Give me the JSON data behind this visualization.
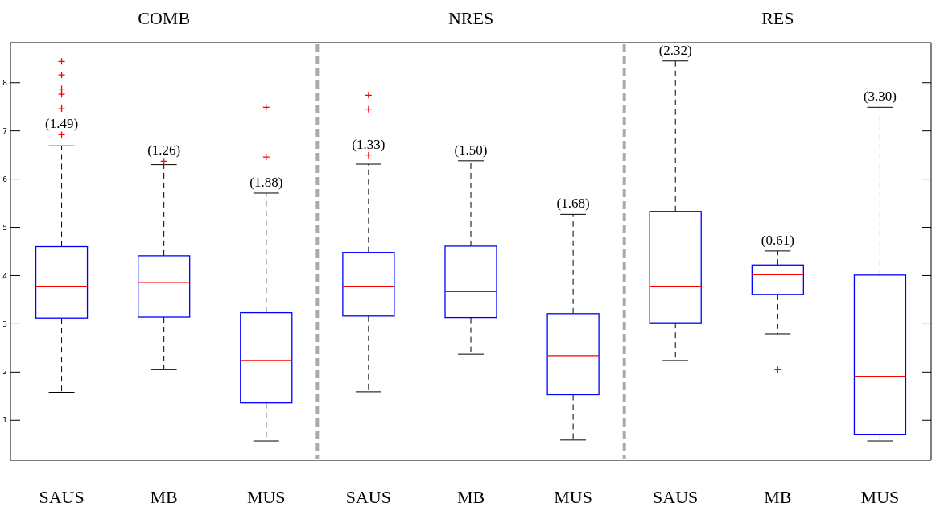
{
  "chart_data": [
    {
      "type": "box",
      "title": "COMB",
      "categories": [
        "SAUS",
        "MB",
        "MUS"
      ],
      "ylim": [
        0.17,
        8.83
      ],
      "yticks": [
        1,
        2,
        3,
        4,
        5,
        6,
        7,
        8
      ],
      "marker": "cross",
      "series": [
        {
          "color": "#0000ff",
          "boxes": [
            {
              "low": 1.58,
              "q1": 3.12,
              "median": 3.77,
              "q3": 4.6,
              "high": 6.69,
              "outliers": [
                8.44,
                8.16,
                7.87,
                7.76,
                7.46,
                6.92
              ]
            },
            {
              "low": 2.05,
              "q1": 3.14,
              "median": 3.86,
              "q3": 4.41,
              "high": 6.3,
              "outliers": [
                6.37
              ]
            },
            {
              "low": 0.57,
              "q1": 1.36,
              "median": 2.24,
              "q3": 3.23,
              "high": 5.71,
              "outliers": [
                7.49,
                6.46
              ]
            }
          ]
        }
      ],
      "annotations": [
        {
          "text": "(1.49)",
          "x": "SAUS",
          "y": 6.69
        },
        {
          "text": "(1.26)",
          "x": "MB",
          "y": 6.3
        },
        {
          "text": "(1.88)",
          "x": "MUS",
          "y": 5.71
        }
      ]
    },
    {
      "type": "box",
      "title": "NRES",
      "categories": [
        "SAUS",
        "MB",
        "MUS"
      ],
      "ylim": [
        0.17,
        8.83
      ],
      "yticks": [
        1,
        2,
        3,
        4,
        5,
        6,
        7,
        8
      ],
      "tick_labels": "x",
      "marker": "cross",
      "series": [
        {
          "color": "#0000ff",
          "boxes": [
            {
              "low": 1.59,
              "q1": 3.16,
              "median": 3.77,
              "q3": 4.48,
              "high": 6.31,
              "outliers": [
                7.74,
                7.45,
                6.5
              ]
            },
            {
              "low": 2.37,
              "q1": 3.13,
              "median": 3.67,
              "q3": 4.61,
              "high": 6.38
            },
            {
              "low": 0.59,
              "q1": 1.53,
              "median": 2.34,
              "q3": 3.21,
              "high": 5.27
            }
          ]
        }
      ],
      "annotations": [
        {
          "text": "(1.33)",
          "x": "SAUS",
          "y": 6.31
        },
        {
          "text": "(1.50)",
          "x": "MB",
          "y": 6.38
        },
        {
          "text": "(1.68)",
          "x": "MUS",
          "y": 5.27
        }
      ]
    },
    {
      "type": "box",
      "title": "RES",
      "categories": [
        "SAUS",
        "MB",
        "MUS"
      ],
      "ylim": [
        0.17,
        8.83
      ],
      "yticks": [
        1,
        2,
        3,
        4,
        5,
        6,
        7,
        8
      ],
      "tick_labels": "x",
      "marker": "cross",
      "series": [
        {
          "color": "#0000ff",
          "boxes": [
            {
              "low": 2.24,
              "q1": 3.02,
              "median": 3.77,
              "q3": 5.33,
              "high": 8.45
            },
            {
              "low": 2.79,
              "q1": 3.61,
              "median": 4.02,
              "q3": 4.22,
              "high": 4.51,
              "outliers": [
                2.05
              ]
            },
            {
              "low": 0.57,
              "q1": 0.71,
              "median": 1.91,
              "q3": 4.01,
              "high": 7.49
            }
          ]
        }
      ],
      "annotations": [
        {
          "text": "(2.32)",
          "x": "SAUS",
          "y": 8.45
        },
        {
          "text": "(0.61)",
          "x": "MB",
          "y": 4.51
        },
        {
          "text": "(3.30)",
          "x": "MUS",
          "y": 7.49
        }
      ]
    }
  ]
}
